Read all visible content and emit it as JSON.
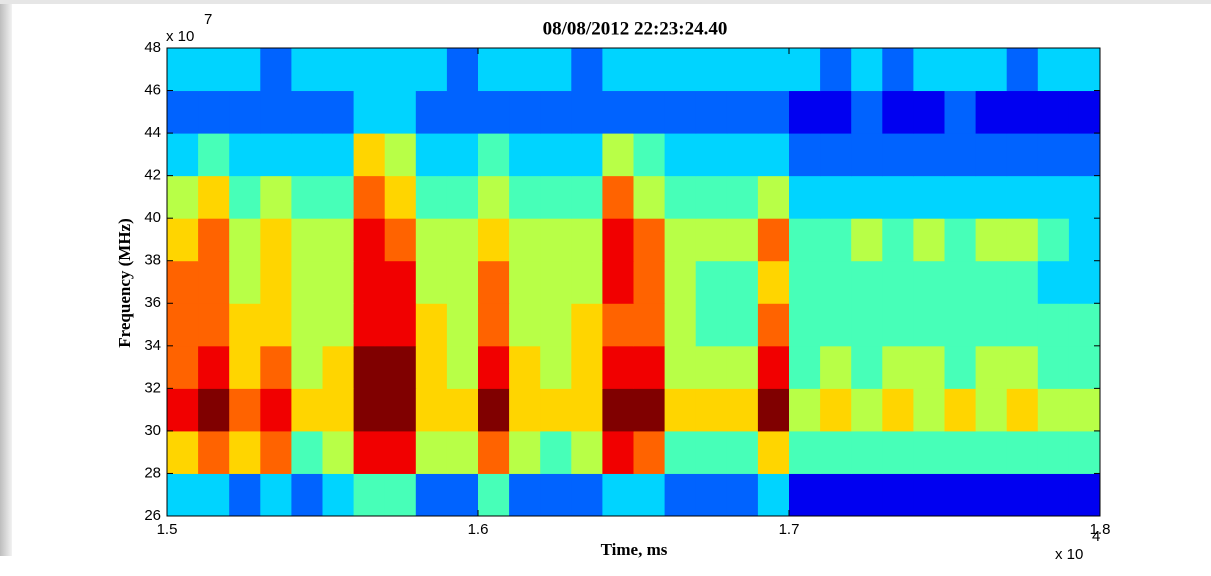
{
  "chart_data": {
    "type": "heatmap",
    "title": "08/08/2012 22:23:24.40",
    "x_label": "Time, ms",
    "y_label": "Frequency (MHz)",
    "x_exponent_base": "x 10",
    "x_exponent": "4",
    "y_exponent_base": "x 10",
    "y_exponent": "7",
    "xlim": [
      1.5,
      1.8
    ],
    "xticks": [
      1.5,
      1.6,
      1.7,
      1.8
    ],
    "ylim": [
      26,
      48
    ],
    "yticks": [
      26,
      28,
      30,
      32,
      34,
      36,
      38,
      40,
      42,
      44,
      46,
      48
    ],
    "colormap": "jet",
    "zlim": [
      0,
      9
    ],
    "x": [
      1.505,
      1.515,
      1.525,
      1.535,
      1.545,
      1.555,
      1.565,
      1.575,
      1.585,
      1.595,
      1.605,
      1.615,
      1.625,
      1.635,
      1.645,
      1.655,
      1.665,
      1.675,
      1.685,
      1.695,
      1.705,
      1.715,
      1.725,
      1.735,
      1.745,
      1.755,
      1.765,
      1.775,
      1.785,
      1.795
    ],
    "y": [
      27,
      29,
      31,
      33,
      35,
      37,
      39,
      41,
      43,
      45,
      47
    ],
    "z": [
      [
        3,
        3,
        2,
        3,
        2,
        3,
        4,
        4,
        2,
        2,
        4,
        2,
        2,
        2,
        3,
        3,
        2,
        2,
        2,
        3,
        1,
        1,
        1,
        1,
        1,
        1,
        1,
        1,
        1,
        1
      ],
      [
        6,
        7,
        6,
        7,
        4,
        5,
        8,
        8,
        5,
        5,
        7,
        5,
        4,
        5,
        8,
        7,
        4,
        4,
        4,
        6,
        4,
        4,
        4,
        4,
        4,
        4,
        4,
        4,
        4,
        4
      ],
      [
        8,
        9,
        7,
        8,
        6,
        6,
        9,
        9,
        6,
        6,
        9,
        6,
        6,
        6,
        9,
        9,
        6,
        6,
        6,
        9,
        5,
        6,
        5,
        6,
        5,
        6,
        5,
        6,
        5,
        5
      ],
      [
        7,
        8,
        6,
        7,
        5,
        6,
        9,
        9,
        6,
        5,
        8,
        6,
        5,
        6,
        8,
        8,
        5,
        5,
        5,
        8,
        4,
        5,
        4,
        5,
        5,
        4,
        5,
        5,
        4,
        4
      ],
      [
        7,
        7,
        6,
        6,
        5,
        5,
        8,
        8,
        6,
        5,
        7,
        5,
        5,
        6,
        7,
        7,
        5,
        4,
        4,
        7,
        4,
        4,
        4,
        4,
        4,
        4,
        4,
        4,
        4,
        4
      ],
      [
        7,
        7,
        5,
        6,
        5,
        5,
        8,
        8,
        5,
        5,
        7,
        5,
        5,
        5,
        8,
        7,
        5,
        4,
        4,
        6,
        4,
        4,
        4,
        4,
        4,
        4,
        4,
        4,
        3,
        3
      ],
      [
        6,
        7,
        5,
        6,
        5,
        5,
        8,
        7,
        5,
        5,
        6,
        5,
        5,
        5,
        8,
        7,
        5,
        5,
        5,
        7,
        4,
        4,
        5,
        4,
        5,
        4,
        5,
        5,
        4,
        3
      ],
      [
        5,
        6,
        4,
        5,
        4,
        4,
        7,
        6,
        4,
        4,
        5,
        4,
        4,
        4,
        7,
        5,
        4,
        4,
        4,
        5,
        3,
        3,
        3,
        3,
        3,
        3,
        3,
        3,
        3,
        3
      ],
      [
        3,
        4,
        3,
        3,
        3,
        3,
        6,
        5,
        3,
        3,
        4,
        3,
        3,
        3,
        5,
        4,
        3,
        3,
        3,
        3,
        2,
        2,
        2,
        2,
        2,
        2,
        2,
        2,
        2,
        2
      ],
      [
        2,
        2,
        2,
        2,
        2,
        2,
        3,
        3,
        2,
        2,
        2,
        2,
        2,
        2,
        2,
        2,
        2,
        2,
        2,
        2,
        1,
        1,
        2,
        1,
        1,
        2,
        1,
        1,
        1,
        1
      ],
      [
        3,
        3,
        3,
        2,
        3,
        3,
        3,
        3,
        3,
        2,
        3,
        3,
        3,
        2,
        3,
        3,
        3,
        3,
        3,
        3,
        3,
        2,
        3,
        2,
        3,
        3,
        3,
        2,
        3,
        3
      ]
    ]
  }
}
